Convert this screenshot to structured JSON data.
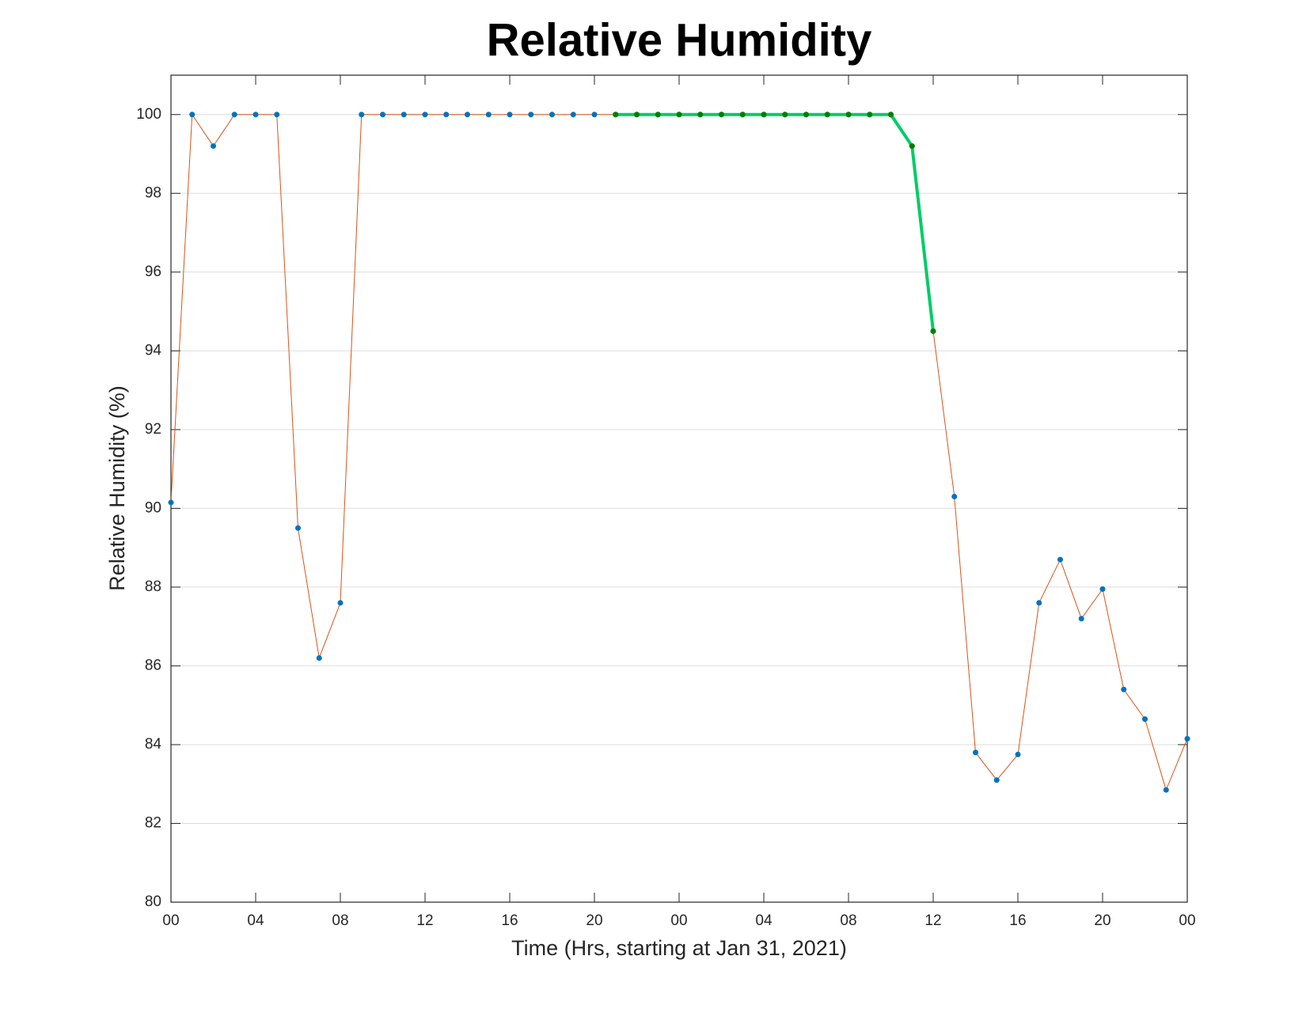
{
  "chart_data": {
    "type": "line",
    "title": "Relative Humidity",
    "x_label": "Time (Hrs, starting at Jan 31, 2021)",
    "y_label": "Relative Humidity (%)",
    "x": [
      0,
      1,
      2,
      3,
      4,
      5,
      6,
      7,
      8,
      9,
      10,
      11,
      12,
      13,
      14,
      15,
      16,
      17,
      18,
      19,
      20,
      21,
      22,
      23,
      24,
      25,
      26,
      27,
      28,
      29,
      30,
      31,
      32,
      33,
      34,
      35,
      36,
      37,
      38,
      39,
      40,
      41,
      42,
      43,
      44,
      45,
      46,
      47,
      48
    ],
    "series": [
      {
        "color": "#d95319",
        "marker_color": "#0072bd",
        "line_width": 1,
        "values": [
          90.15,
          100,
          99.2,
          100,
          100,
          100,
          89.5,
          86.2,
          87.6,
          100,
          100,
          100,
          100,
          100,
          100,
          100,
          100,
          100,
          100,
          100,
          100,
          100,
          100,
          100,
          100,
          100,
          100,
          100,
          100,
          100,
          100,
          100,
          100,
          100,
          100,
          99.2,
          94.5,
          90.3,
          83.8,
          83.1,
          83.75,
          87.6,
          88.7,
          87.2,
          87.95,
          85.4,
          84.65,
          82.85,
          84.15
        ]
      },
      {
        "color": "#00cc66",
        "marker_color": "#007f00",
        "line_width": 4,
        "values": [
          null,
          null,
          null,
          null,
          null,
          null,
          null,
          null,
          null,
          null,
          null,
          null,
          null,
          null,
          null,
          null,
          null,
          null,
          null,
          null,
          null,
          100,
          100,
          100,
          100,
          100,
          100,
          100,
          100,
          100,
          100,
          100,
          100,
          100,
          100,
          99.2,
          94.5,
          null,
          null,
          null,
          null,
          null,
          null,
          null,
          null,
          null,
          null,
          null,
          null
        ]
      }
    ],
    "xlim": [
      0,
      48
    ],
    "xticks": [
      {
        "value": 0,
        "label": "00"
      },
      {
        "value": 4,
        "label": "04"
      },
      {
        "value": 8,
        "label": "08"
      },
      {
        "value": 12,
        "label": "12"
      },
      {
        "value": 16,
        "label": "16"
      },
      {
        "value": 20,
        "label": "20"
      },
      {
        "value": 24,
        "label": "00"
      },
      {
        "value": 28,
        "label": "04"
      },
      {
        "value": 32,
        "label": "08"
      },
      {
        "value": 36,
        "label": "12"
      },
      {
        "value": 40,
        "label": "16"
      },
      {
        "value": 44,
        "label": "20"
      },
      {
        "value": 48,
        "label": "00"
      }
    ],
    "ylim": [
      80,
      101
    ],
    "yticks": [
      80,
      82,
      84,
      86,
      88,
      90,
      92,
      94,
      96,
      98,
      100
    ],
    "grid": true
  }
}
